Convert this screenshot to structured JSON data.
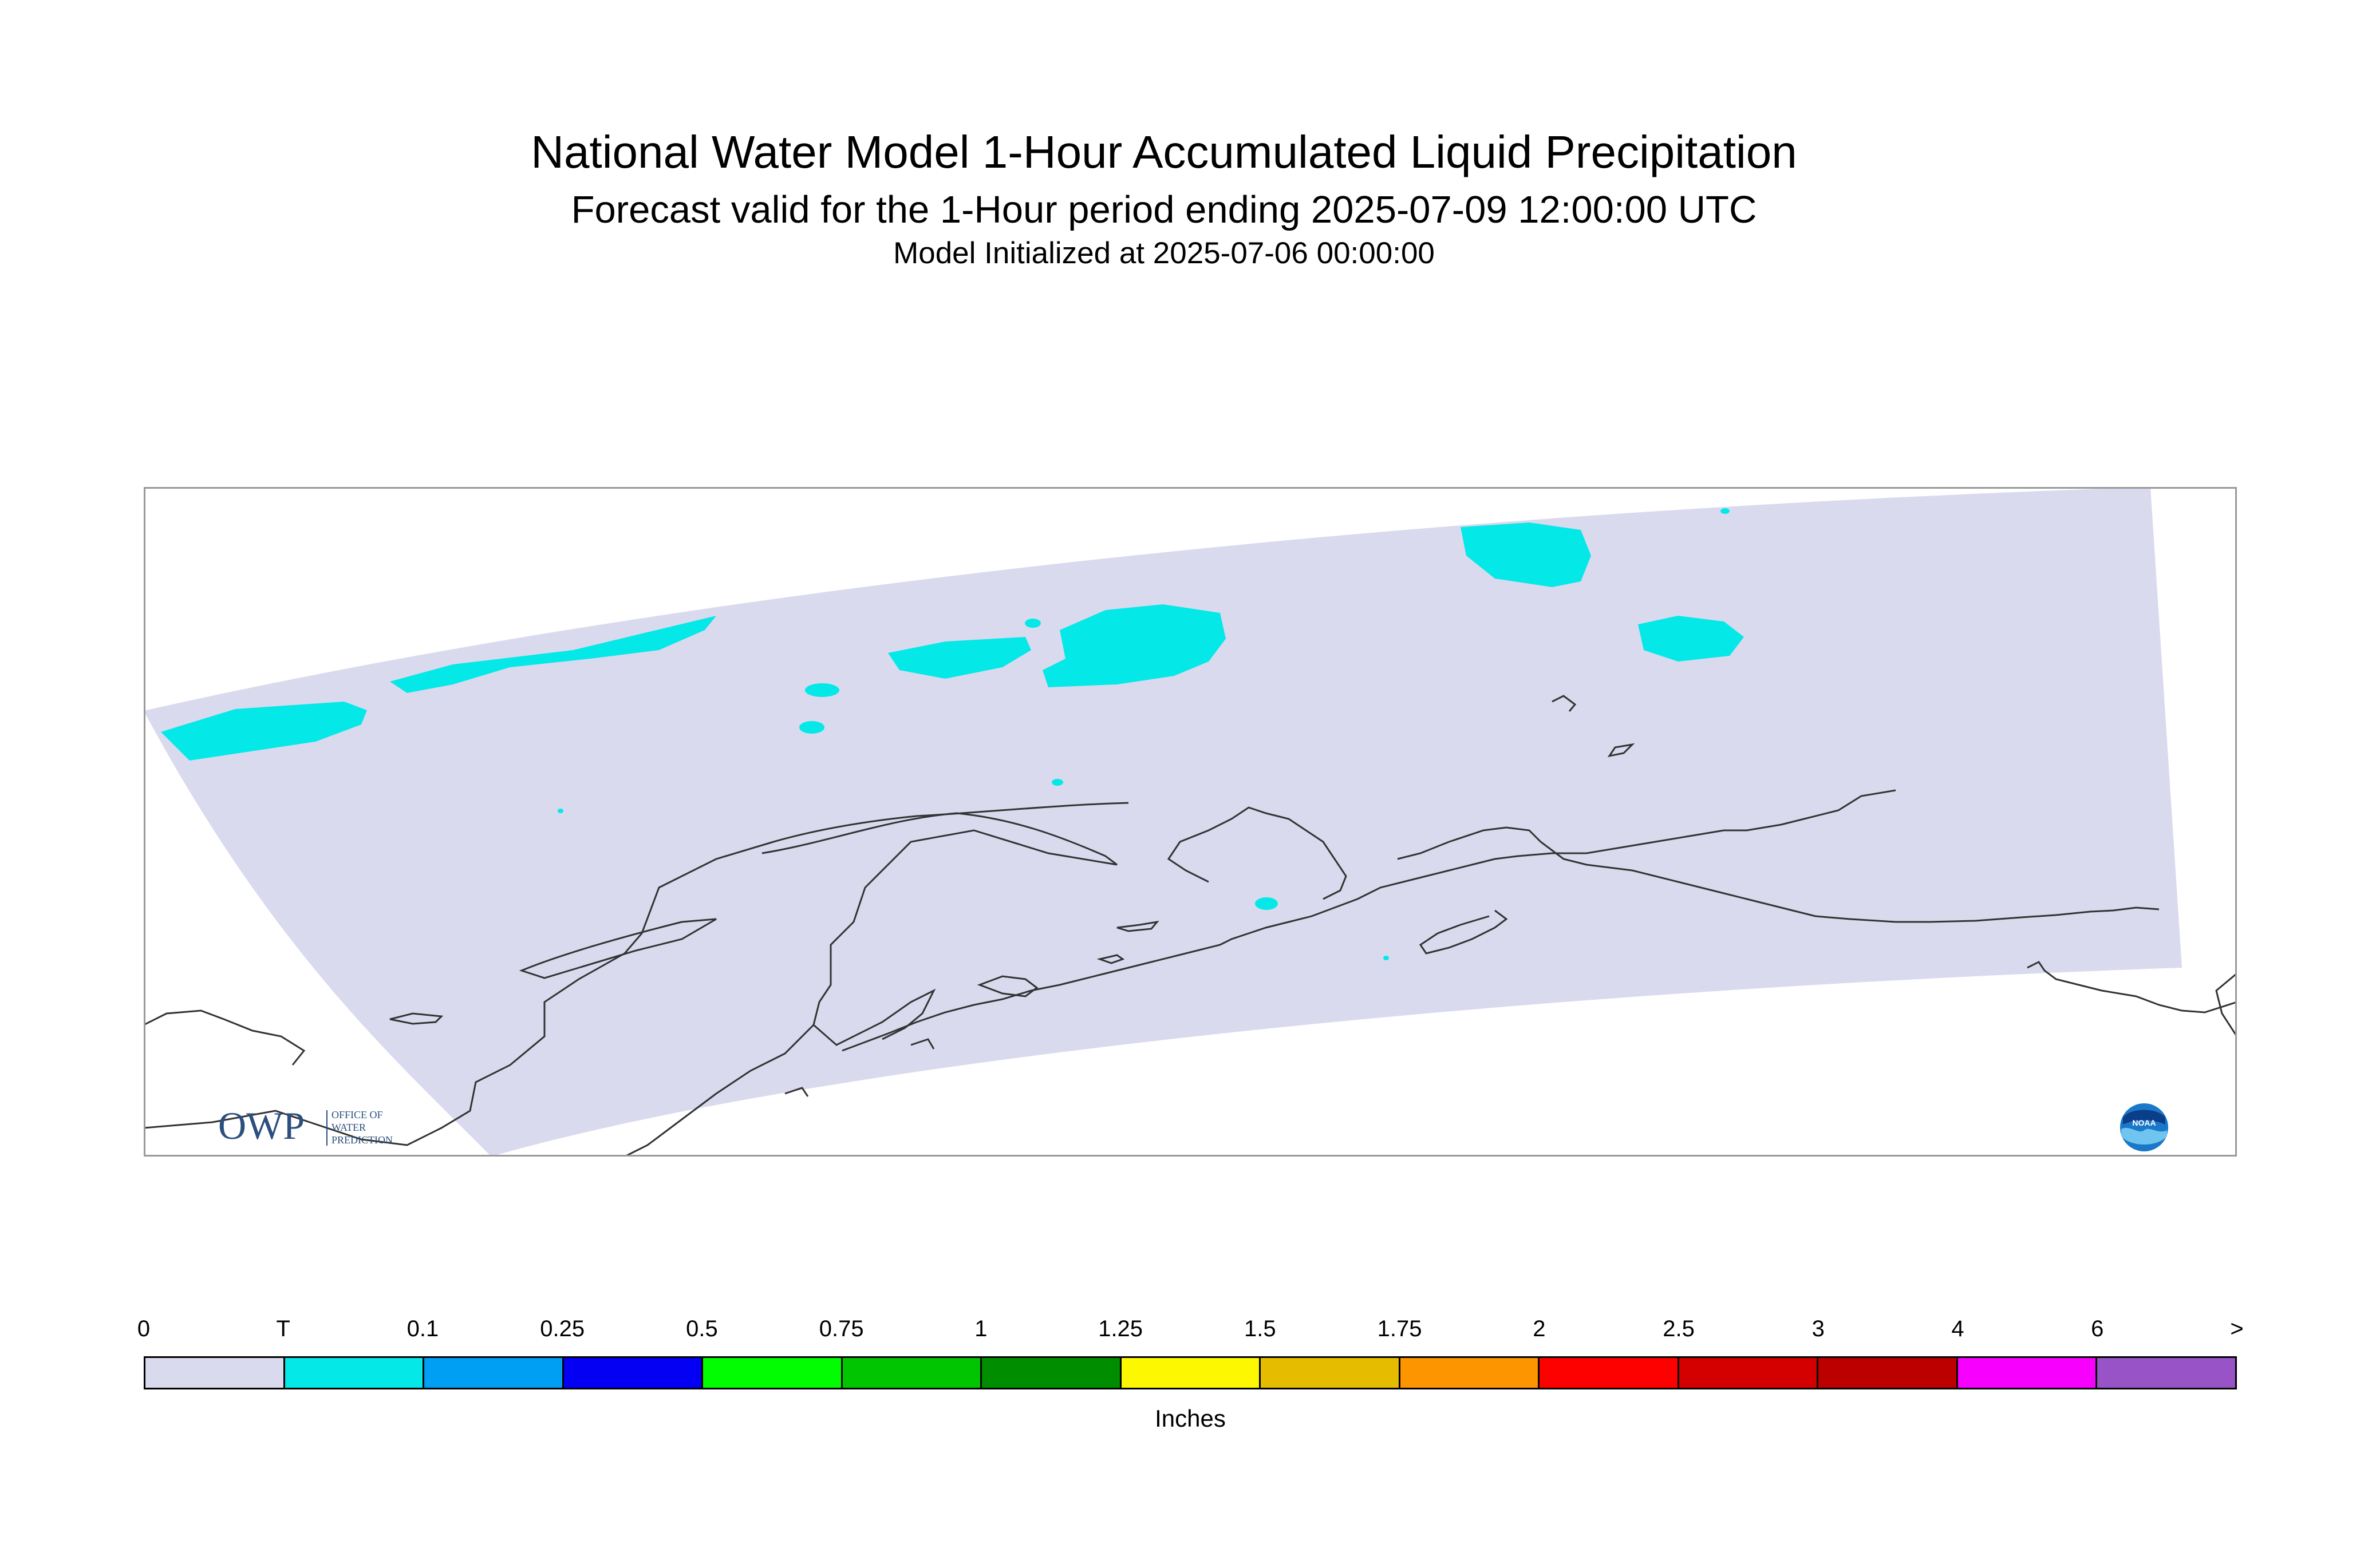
{
  "title": "National Water Model 1-Hour Accumulated Liquid Precipitation",
  "subtitle": "Forecast valid for the 1-Hour period ending 2025-07-09 12:00:00 UTC",
  "init_line": "Model Initialized at 2025-07-06 00:00:00",
  "logos": {
    "owp_mark": "OWP",
    "owp_text_lines": [
      "OFFICE OF",
      "WATER",
      "PREDICTION"
    ],
    "noaa_text": "NOAA"
  },
  "colors": {
    "domain_fill": "#d9daee",
    "precip_trace": "#04e8e8",
    "coastline": "#333333",
    "frame": "#999999"
  },
  "legend": {
    "units": "Inches",
    "tick_labels": [
      "0",
      "T",
      "0.1",
      "0.25",
      "0.5",
      "0.75",
      "1",
      "1.25",
      "1.5",
      "1.75",
      "2",
      "2.5",
      "3",
      "4",
      "6",
      ">"
    ],
    "colors": [
      "#d9daee",
      "#04e8e8",
      "#019ff4",
      "#0300f4",
      "#02fd02",
      "#01c501",
      "#008e00",
      "#fdf802",
      "#e5bc00",
      "#fd9500",
      "#fd0000",
      "#d40000",
      "#bc0000",
      "#f800fd",
      "#9854c6"
    ]
  }
}
